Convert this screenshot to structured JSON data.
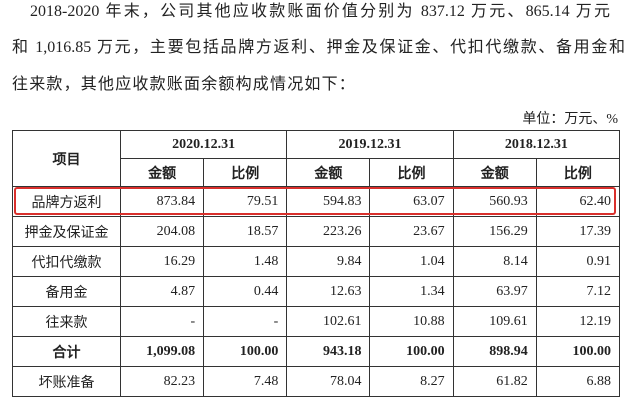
{
  "paragraph": {
    "lines": [
      "2018-2020 年末，公司其他应收款账面价值分别为 837.12 万元、865.14 万元",
      "和 1,016.85 万元，主要包括品牌方返利、押金及保证金、代扣代缴款、备用金和",
      "往来款，其他应收款账面余额构成情况如下："
    ]
  },
  "unit": "单位：万元、%",
  "table": {
    "item_header": "项目",
    "years": [
      "2020.12.31",
      "2019.12.31",
      "2018.12.31"
    ],
    "sub_headers": [
      "金额",
      "比例"
    ],
    "rows": [
      [
        "品牌方返利",
        "873.84",
        "79.51",
        "594.83",
        "63.07",
        "560.93",
        "62.40"
      ],
      [
        "押金及保证金",
        "204.08",
        "18.57",
        "223.26",
        "23.67",
        "156.29",
        "17.39"
      ],
      [
        "代扣代缴款",
        "16.29",
        "1.48",
        "9.84",
        "1.04",
        "8.14",
        "0.91"
      ],
      [
        "备用金",
        "4.87",
        "0.44",
        "12.63",
        "1.34",
        "63.97",
        "7.12"
      ],
      [
        "往来款",
        "-",
        "-",
        "102.61",
        "10.88",
        "109.61",
        "12.19"
      ],
      [
        "合计",
        "1,099.08",
        "100.00",
        "943.18",
        "100.00",
        "898.94",
        "100.00"
      ],
      [
        "坏账准备",
        "82.23",
        "7.48",
        "78.04",
        "8.27",
        "61.82",
        "6.88"
      ]
    ]
  }
}
